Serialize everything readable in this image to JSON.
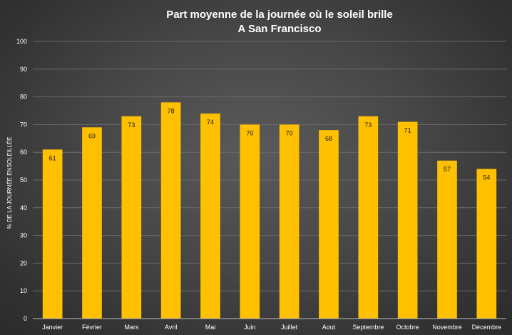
{
  "chart_data": {
    "type": "bar",
    "title": "Part moyenne de la journée où le soleil brille",
    "subtitle": "A San Francisco",
    "xlabel": "",
    "ylabel": "% DE LA JOURNÉE ENSOLEILLÉE",
    "ylim": [
      0,
      100
    ],
    "yticks": [
      0,
      10,
      20,
      30,
      40,
      50,
      60,
      70,
      80,
      90,
      100
    ],
    "grid": true,
    "categories": [
      "Janvier",
      "Février",
      "Mars",
      "Avril",
      "Mai",
      "Juin",
      "Juillet",
      "Aout",
      "Septembre",
      "Octobre",
      "Novembre",
      "Décembre"
    ],
    "values": [
      61,
      69,
      73,
      78,
      74,
      70,
      70,
      68,
      73,
      71,
      57,
      54
    ],
    "bar_color": "#FFC000",
    "grid_color": "#6a6a6a",
    "axis_color": "#bfbfbf"
  }
}
